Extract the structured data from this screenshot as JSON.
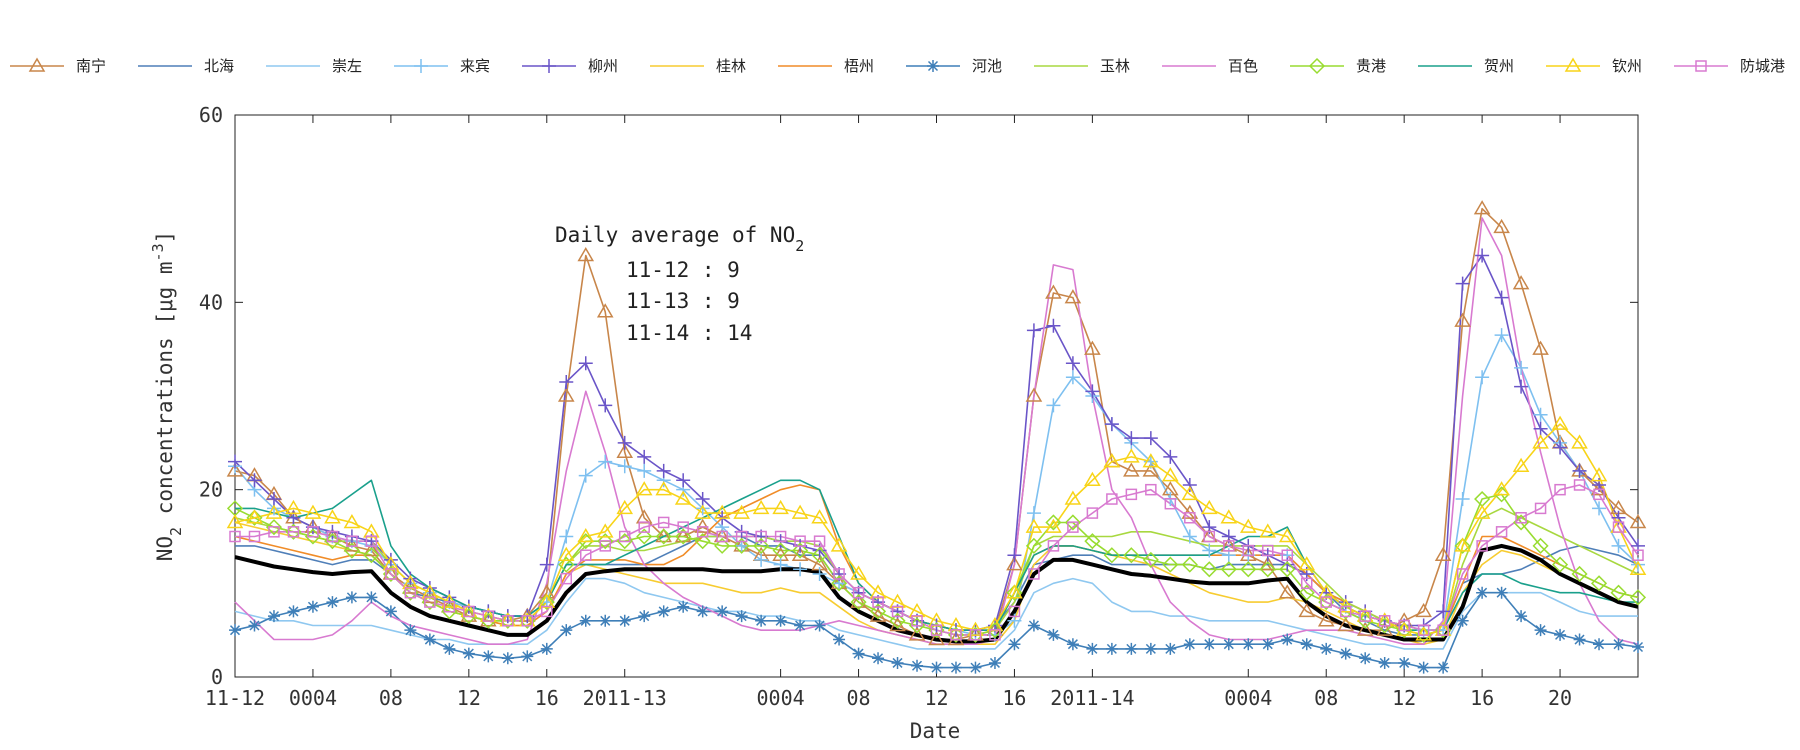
{
  "chart_data": {
    "type": "line",
    "title": "",
    "xlabel": "Date",
    "ylabel_prefix": "NO",
    "ylabel_sub": "2",
    "ylabel_rest": " concentrations [μg m",
    "ylabel_sup": "-3",
    "ylabel_close": "]",
    "ylim": [
      0,
      60
    ],
    "yticks": [
      0,
      20,
      40,
      60
    ],
    "xlim": [
      0,
      72
    ],
    "xticks": [
      {
        "x": 0,
        "label": "11-12"
      },
      {
        "x": 4,
        "label": "0004"
      },
      {
        "x": 8,
        "label": "08"
      },
      {
        "x": 12,
        "label": "12"
      },
      {
        "x": 16,
        "label": "16"
      },
      {
        "x": 20,
        "label": "2011-13"
      },
      {
        "x": 28,
        "label": "0004"
      },
      {
        "x": 32,
        "label": "08"
      },
      {
        "x": 36,
        "label": "12"
      },
      {
        "x": 40,
        "label": "16"
      },
      {
        "x": 44,
        "label": "2011-14"
      },
      {
        "x": 52,
        "label": "0004"
      },
      {
        "x": 56,
        "label": "08"
      },
      {
        "x": 60,
        "label": "12"
      },
      {
        "x": 64,
        "label": "16"
      },
      {
        "x": 68,
        "label": "20"
      }
    ],
    "annotation": {
      "title_main": "Daily average of NO",
      "title_sub": "2",
      "lines": [
        "11-12 : 9",
        "11-13 : 9",
        "11-14 : 14"
      ]
    },
    "series": [
      {
        "name": "南宁",
        "color": "#c8864a",
        "marker": "triangle",
        "values": [
          22,
          21.5,
          19.5,
          17,
          16,
          15,
          14,
          13.5,
          11,
          9.5,
          8.5,
          7.5,
          6.5,
          6,
          6,
          6.5,
          9,
          30,
          45,
          39,
          24,
          17,
          15,
          15,
          16,
          15,
          14,
          13,
          13,
          13,
          12,
          10,
          8,
          6.5,
          5.5,
          4.5,
          4,
          4,
          4.5,
          5,
          12,
          30,
          41,
          40.5,
          35,
          23,
          22,
          22,
          20,
          17.5,
          15,
          14,
          13,
          12,
          9,
          7,
          6,
          5.5,
          5,
          5,
          6,
          7,
          13,
          38,
          50,
          48,
          42,
          35,
          25,
          22,
          20,
          18,
          16.5
        ]
      },
      {
        "name": "北海",
        "color": "#4f7fb8",
        "marker": "none",
        "values": [
          14,
          14,
          13.5,
          13,
          12.5,
          12,
          12.5,
          12.5,
          11,
          9,
          8.5,
          8,
          7.5,
          7,
          6.5,
          6.5,
          8,
          12,
          12,
          12,
          12,
          12,
          13,
          14,
          15,
          15,
          15,
          14,
          14,
          13,
          13,
          10,
          9,
          8,
          7,
          6,
          5.5,
          5,
          5,
          5.5,
          8,
          12,
          12.5,
          13,
          13,
          12,
          12,
          12,
          12,
          12,
          11.5,
          12,
          12,
          12,
          12,
          11,
          9,
          7,
          6,
          5,
          4.5,
          4.5,
          5,
          10,
          11,
          11,
          11.5,
          12.5,
          13.5,
          14,
          13.5,
          13,
          12
        ]
      },
      {
        "name": "崇左",
        "color": "#8fc8f0",
        "marker": "none",
        "values": [
          7,
          6.5,
          6,
          6,
          5.5,
          5.5,
          5.5,
          5.5,
          5,
          4.5,
          4,
          4,
          3.5,
          3.5,
          3.5,
          3.5,
          5,
          8,
          10.5,
          10.5,
          10,
          9,
          8.5,
          8,
          7.5,
          7,
          7,
          6.5,
          6.5,
          6,
          6,
          5,
          4.5,
          4,
          3.5,
          3,
          3,
          3,
          3,
          3,
          5,
          9,
          10,
          10.5,
          10,
          8,
          7,
          7,
          6.5,
          6.5,
          6,
          6,
          6,
          6,
          5.5,
          5,
          4.5,
          4,
          3.5,
          3.5,
          3,
          3,
          3,
          7,
          9,
          9,
          9,
          9,
          8,
          7,
          6.5,
          6.5,
          6.5
        ]
      },
      {
        "name": "来宾",
        "color": "#7ec0f0",
        "marker": "plus",
        "values": [
          22.5,
          20,
          18,
          17,
          16,
          15,
          14.5,
          14,
          12,
          10,
          9,
          8,
          7.5,
          7,
          6.5,
          6.5,
          8,
          15,
          21.5,
          23,
          22.5,
          22,
          21,
          20,
          18,
          16,
          14,
          12.5,
          12,
          11.5,
          11,
          10,
          9,
          8,
          7,
          6,
          5.5,
          5,
          4.5,
          4.5,
          6,
          17.5,
          29,
          32,
          30,
          27,
          25,
          23,
          19,
          15,
          13.5,
          13,
          13,
          13,
          13,
          11,
          9,
          7.5,
          6.5,
          6,
          5.5,
          5,
          5,
          19,
          32,
          36.5,
          33,
          28,
          25,
          22,
          18,
          14,
          12
        ]
      },
      {
        "name": "柳州",
        "color": "#6a55c8",
        "marker": "plus",
        "values": [
          23,
          21,
          19,
          17,
          16,
          15.5,
          15,
          14.5,
          12.5,
          10.5,
          9.5,
          8.5,
          7.5,
          7,
          6.5,
          6.5,
          12,
          31.5,
          33.5,
          29,
          25,
          23.5,
          22,
          21,
          19,
          17,
          15.5,
          15,
          14.5,
          14,
          13.5,
          11,
          9,
          8,
          7,
          6,
          5.5,
          5,
          5,
          5.5,
          13,
          37,
          37.5,
          33.5,
          30.5,
          27,
          25.5,
          25.5,
          23.5,
          20.5,
          16,
          15,
          14,
          13,
          12,
          11,
          9,
          8,
          7,
          6,
          5.5,
          5.5,
          7,
          42,
          45,
          40.5,
          31,
          26.5,
          24.5,
          22,
          20.5,
          17,
          14
        ]
      },
      {
        "name": "桂林",
        "color": "#f7cc30",
        "marker": "none",
        "values": [
          16.5,
          16,
          15.5,
          15,
          14.5,
          14,
          13.5,
          13,
          11,
          9,
          8,
          7,
          6.5,
          6,
          5.5,
          5.5,
          7,
          11,
          12,
          11.5,
          11,
          10.5,
          10,
          10,
          10,
          9.5,
          9,
          9,
          9.5,
          9,
          9,
          7.5,
          6,
          5,
          4.5,
          4,
          3.5,
          3.5,
          3.5,
          3.5,
          6,
          12,
          14,
          14,
          13.5,
          13,
          12.5,
          12,
          11,
          10,
          9,
          8.5,
          8,
          8,
          8.5,
          8,
          7,
          6,
          5,
          4.5,
          4,
          3.5,
          4,
          9,
          12,
          13.5,
          13,
          12,
          11,
          10,
          9,
          8,
          7.5
        ]
      },
      {
        "name": "梧州",
        "color": "#f08c28",
        "marker": "none",
        "values": [
          15,
          14.5,
          14,
          13.5,
          13,
          12.5,
          13,
          13,
          11,
          9,
          8,
          7,
          6.5,
          6,
          5.5,
          5.5,
          7,
          11,
          12.5,
          12.5,
          12.5,
          12,
          12,
          13,
          15,
          17,
          18,
          19,
          20,
          20.5,
          20,
          14,
          10,
          8,
          7,
          6,
          5.5,
          5,
          5,
          5,
          9,
          13,
          14,
          14,
          13.5,
          13,
          13,
          13,
          13,
          13,
          13,
          13,
          13,
          13,
          13,
          11,
          9,
          8,
          7,
          6,
          5,
          5,
          5,
          10,
          15,
          15,
          14,
          13,
          12,
          11,
          10,
          9,
          8.5
        ]
      },
      {
        "name": "河池",
        "color": "#3f7fb8",
        "marker": "star",
        "values": [
          5,
          5.5,
          6.5,
          7,
          7.5,
          8,
          8.5,
          8.5,
          7,
          5,
          4,
          3,
          2.5,
          2.2,
          2,
          2.2,
          3,
          5,
          6,
          6,
          6,
          6.5,
          7,
          7.5,
          7,
          7,
          6.5,
          6,
          6,
          5.5,
          5.5,
          4,
          2.5,
          2,
          1.5,
          1.2,
          1,
          1,
          1,
          1.5,
          3.5,
          5.5,
          4.5,
          3.5,
          3,
          3,
          3,
          3,
          3,
          3.5,
          3.5,
          3.5,
          3.5,
          3.5,
          4,
          3.5,
          3,
          2.5,
          2,
          1.5,
          1.5,
          1,
          1,
          6,
          9,
          9,
          6.5,
          5,
          4.5,
          4,
          3.5,
          3.5,
          3.2
        ]
      },
      {
        "name": "玉林",
        "color": "#a8d840",
        "marker": "none",
        "values": [
          17,
          16.5,
          16,
          15.5,
          15,
          14.5,
          14.5,
          14.5,
          12,
          10,
          9,
          8,
          7,
          6.5,
          6,
          6,
          8,
          12,
          14,
          14,
          13.5,
          13.5,
          14,
          14.5,
          15,
          15,
          15,
          15,
          14.5,
          14.5,
          14,
          11,
          9,
          8,
          7,
          6,
          5.5,
          5,
          5,
          5,
          8,
          14,
          15,
          15,
          15,
          15,
          15.5,
          15.5,
          15,
          14.5,
          14,
          14,
          14,
          14,
          14,
          12,
          10,
          8,
          7,
          6,
          5.5,
          5,
          5,
          12,
          17,
          18,
          17,
          16,
          15,
          14,
          13,
          12,
          11
        ]
      },
      {
        "name": "百色",
        "color": "#d87ad0",
        "marker": "none",
        "values": [
          8,
          6,
          4,
          4,
          4,
          4.5,
          6,
          8,
          6.5,
          5.5,
          5,
          4.5,
          4,
          3.5,
          3.5,
          4,
          10,
          22,
          30.5,
          24,
          16,
          12,
          10,
          8.5,
          7.5,
          6.5,
          5.5,
          5,
          5,
          5,
          5.5,
          6,
          5.5,
          5,
          4.5,
          4,
          3.5,
          3.5,
          3.5,
          4,
          12,
          30,
          44,
          43.5,
          30,
          20,
          17,
          12,
          8,
          6,
          4.5,
          4,
          4,
          4,
          4.5,
          5,
          5,
          5,
          4.5,
          4,
          3.5,
          3.5,
          6,
          30,
          49,
          45,
          33,
          24,
          16,
          10,
          6,
          4,
          3.5
        ]
      },
      {
        "name": "贵港",
        "color": "#98dc30",
        "marker": "diamond",
        "values": [
          18,
          17,
          16,
          15.5,
          15,
          14.5,
          13.5,
          13,
          11,
          9,
          8,
          7,
          6.5,
          6,
          6,
          6,
          8,
          12,
          14.5,
          14.5,
          14.5,
          15,
          15,
          15,
          14.5,
          14,
          14,
          14,
          13.5,
          13.5,
          13,
          10,
          8,
          7,
          6,
          5.5,
          5,
          4.5,
          4.5,
          5,
          9,
          14,
          16.5,
          16.5,
          14.5,
          13,
          13,
          12.5,
          12,
          12,
          11.5,
          11.5,
          11.5,
          11.5,
          11.5,
          9,
          8,
          7,
          6,
          5.5,
          5,
          4.5,
          5,
          14,
          19,
          19.5,
          16.5,
          14,
          12,
          11,
          10,
          9,
          8.5
        ]
      },
      {
        "name": "贺州",
        "color": "#1aa08c",
        "marker": "none",
        "values": [
          18,
          18,
          17.5,
          17,
          17.5,
          18,
          19.5,
          21,
          14,
          11,
          9.5,
          8.5,
          7.5,
          7,
          6.5,
          6.5,
          8,
          12,
          12,
          12,
          13,
          14,
          15,
          16,
          17,
          18,
          19,
          20,
          21,
          21,
          20,
          15,
          10,
          8,
          7,
          6,
          5.5,
          5,
          5,
          5,
          9,
          13,
          14,
          14,
          13.5,
          13,
          13,
          13,
          13,
          13,
          13,
          14,
          15,
          15,
          16,
          12,
          9,
          7.5,
          6.5,
          6,
          5,
          5,
          5,
          9,
          11,
          11,
          10,
          9.5,
          9,
          9,
          8.5,
          8,
          8
        ]
      },
      {
        "name": "钦州",
        "color": "#f8d418",
        "marker": "triangle",
        "values": [
          16.5,
          17,
          17.5,
          18,
          17.5,
          17,
          16.5,
          15.5,
          12,
          10,
          9,
          8,
          7,
          6.5,
          6,
          6,
          8,
          13,
          15,
          15.5,
          18,
          20,
          20,
          19,
          17.5,
          17.5,
          17.5,
          18,
          18,
          17.5,
          17,
          14,
          11,
          9,
          8,
          7,
          6,
          5.5,
          5,
          5.5,
          9,
          16,
          16,
          19,
          21,
          23,
          23.5,
          23,
          21.5,
          19.5,
          18,
          17,
          16,
          15.5,
          15,
          12,
          9,
          7.5,
          6.5,
          6,
          5,
          4.5,
          5,
          14,
          17.5,
          20,
          22.5,
          25,
          27,
          25,
          21.5,
          16,
          11.5
        ]
      },
      {
        "name": "防城港",
        "color": "#d87ad0",
        "marker": "square",
        "values": [
          15,
          15,
          15.5,
          15.5,
          15.5,
          15,
          14.5,
          14.5,
          11,
          9,
          8,
          7.5,
          7,
          6.5,
          6,
          6,
          7,
          10.5,
          13,
          14,
          15,
          16,
          16.5,
          16,
          15.5,
          15,
          15,
          15,
          15,
          14.5,
          14.5,
          11,
          9,
          8,
          7,
          6,
          5,
          4.5,
          4.5,
          4.5,
          7,
          11,
          14,
          16,
          17.5,
          19,
          19.5,
          20,
          18.5,
          17,
          15,
          14,
          13.5,
          13.5,
          13,
          10,
          8,
          7,
          6.5,
          6,
          5.5,
          5,
          5,
          11,
          14,
          15.5,
          17,
          18,
          20,
          20.5,
          19.5,
          16,
          13
        ]
      },
      {
        "name": "mean",
        "color": "#000000",
        "marker": "none",
        "bold": true,
        "legend": false,
        "values": [
          12.8,
          12.3,
          11.8,
          11.5,
          11.2,
          11,
          11.2,
          11.3,
          9,
          7.5,
          6.5,
          6,
          5.5,
          5,
          4.5,
          4.5,
          6,
          9,
          11,
          11.3,
          11.5,
          11.5,
          11.5,
          11.5,
          11.5,
          11.3,
          11.3,
          11.3,
          11.5,
          11.5,
          11.2,
          8.5,
          7,
          6,
          5,
          4.5,
          4,
          3.8,
          3.8,
          4,
          7,
          11,
          12.5,
          12.5,
          12,
          11.5,
          11,
          10.8,
          10.5,
          10.2,
          10,
          10,
          10,
          10.3,
          10.5,
          8,
          6.5,
          5.5,
          5,
          4.5,
          4,
          4,
          4,
          7.5,
          13.5,
          14,
          13.5,
          12.5,
          11,
          10,
          9,
          8,
          7.5
        ]
      }
    ]
  }
}
